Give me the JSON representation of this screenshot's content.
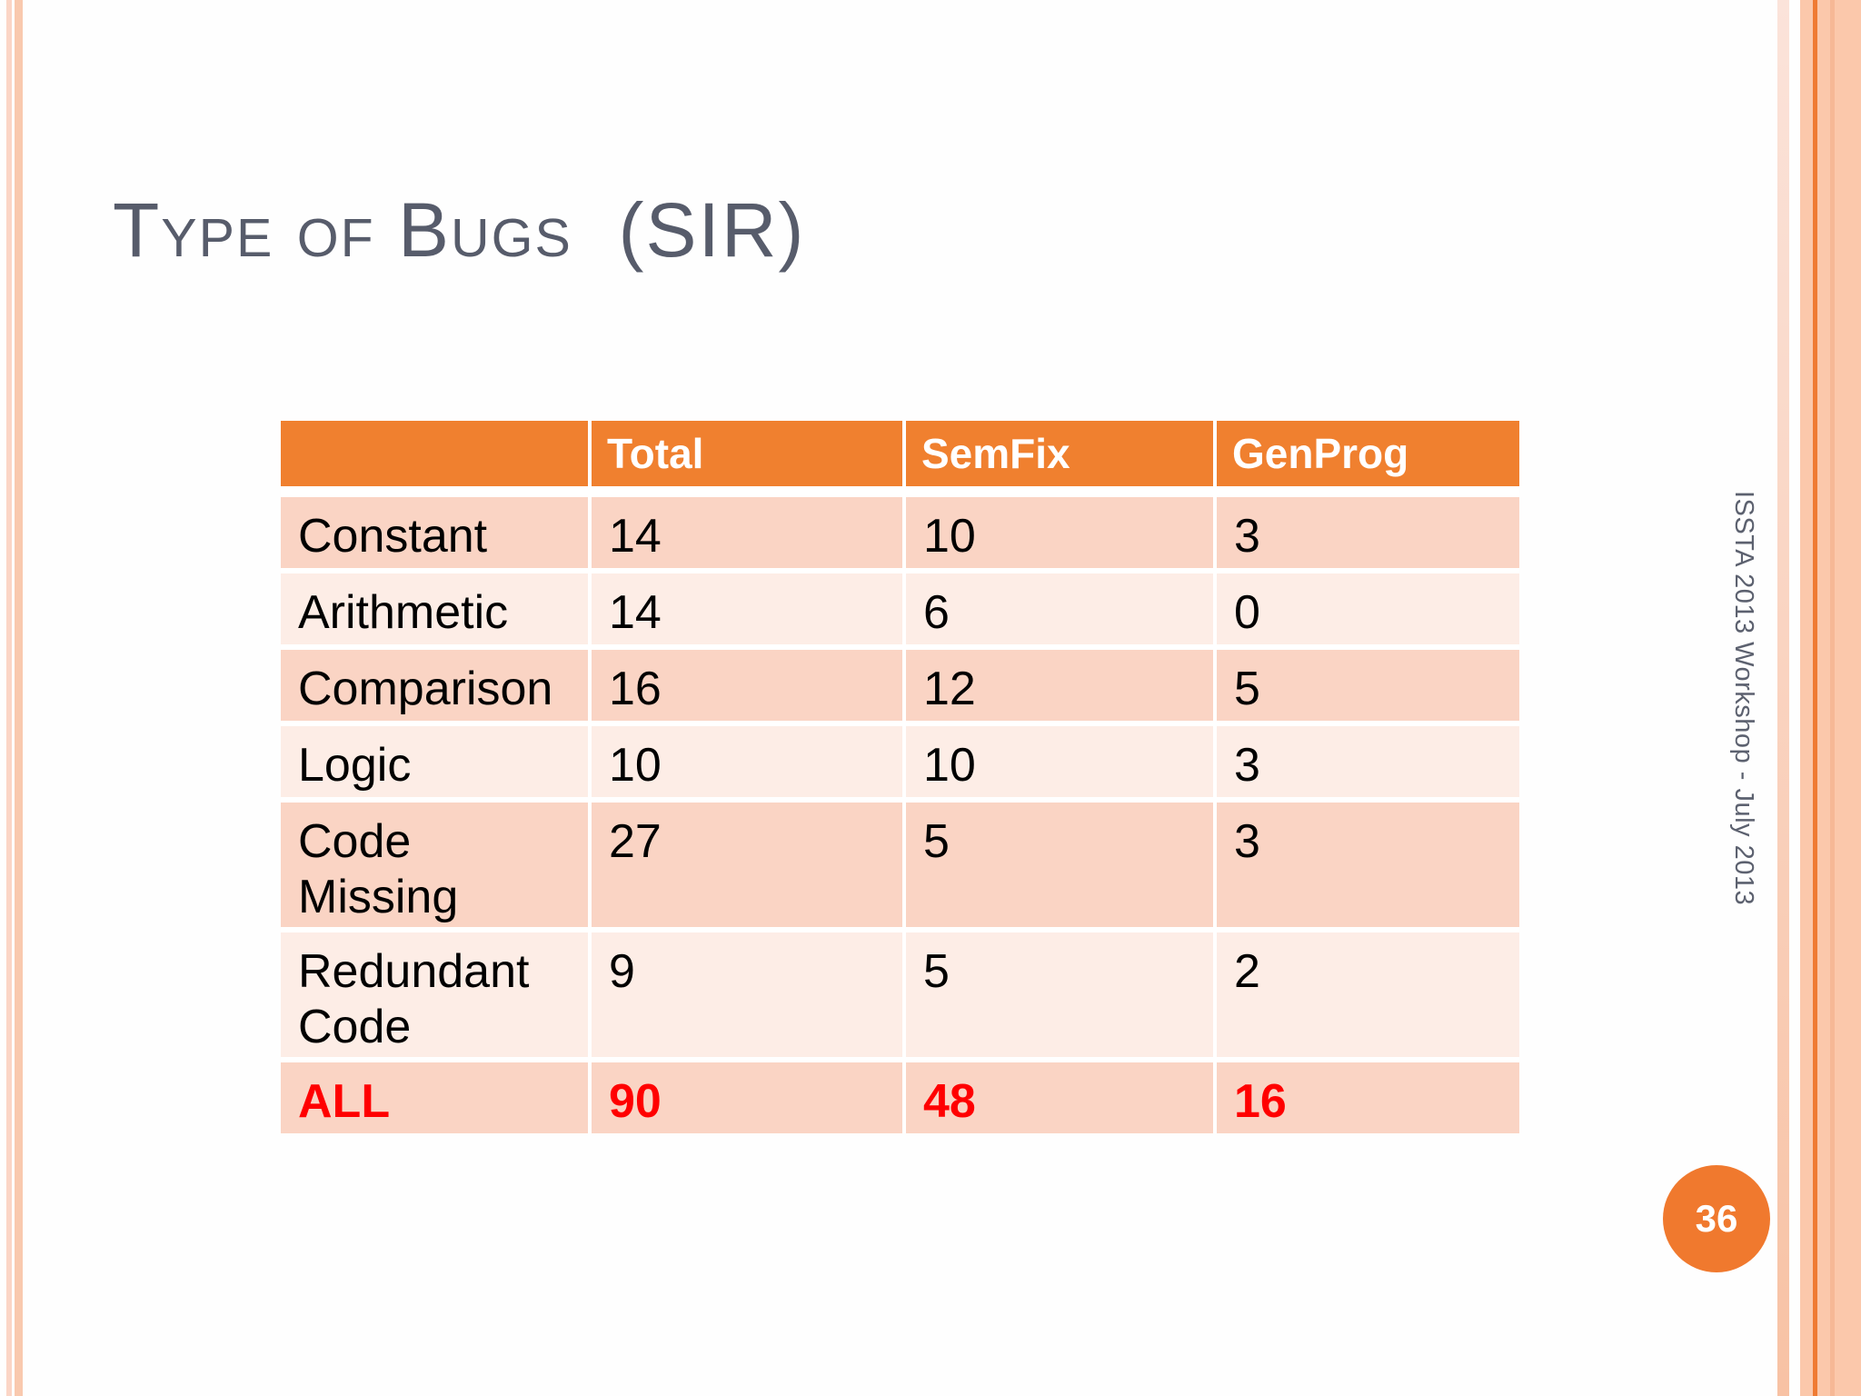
{
  "slide": {
    "title": "Type of Bugs  (SIR)",
    "sidebar_note": "ISSTA 2013 Workshop - July 2013",
    "page_number": "36"
  },
  "table": {
    "columns": [
      "",
      "Total",
      "SemFix",
      "GenProg"
    ],
    "rows": [
      {
        "label": "Constant",
        "values": [
          "14",
          "10",
          "3"
        ]
      },
      {
        "label": "Arithmetic",
        "values": [
          "14",
          "6",
          "0"
        ]
      },
      {
        "label": "Comparison",
        "values": [
          "16",
          "12",
          "5"
        ]
      },
      {
        "label": "Logic",
        "values": [
          "10",
          "10",
          "3"
        ]
      },
      {
        "label": "Code Missing",
        "values": [
          "27",
          "5",
          "3"
        ],
        "tall": true
      },
      {
        "label": "Redundant Code",
        "values": [
          "9",
          "5",
          "2"
        ],
        "tall": true
      },
      {
        "label": "ALL",
        "values": [
          "90",
          "48",
          "16"
        ],
        "emphasis": true
      }
    ]
  },
  "colors": {
    "header_orange": "#F0802F",
    "row_dark": "#FAD4C4",
    "row_light": "#FDEDE6",
    "emphasis_red": "#FF0000",
    "title_gray": "#575C6B",
    "sidebar_gray": "#5C616F",
    "accent_circle": "#F0792E",
    "stripe_left_thin": "#FBD5C6",
    "stripe_left_thick": "#F9C9AE",
    "stripe_right_pale_top": "#FBE3DA",
    "stripe_right_pale_bottom": "#F8C2A4",
    "band_salmon": "#FBC8AB",
    "band_accent_line": "#EF7B33",
    "band_soft_line": "#F6B896"
  }
}
